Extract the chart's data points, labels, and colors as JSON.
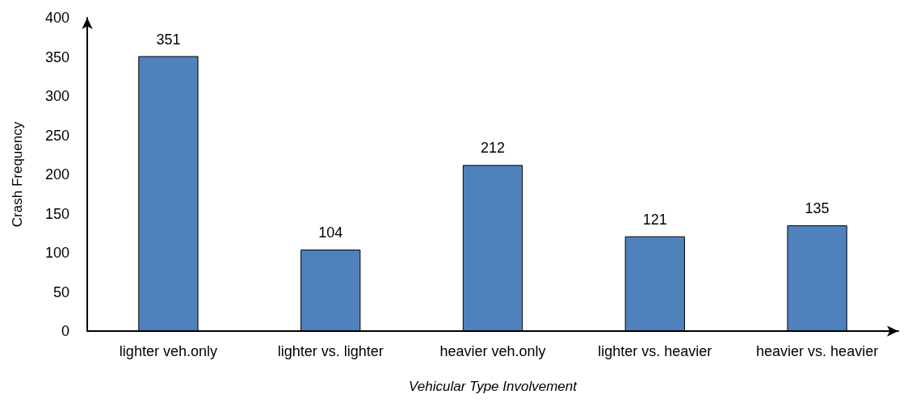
{
  "chart_data": {
    "type": "bar",
    "xlabel": "Vehicular Type Involvement",
    "ylabel": "Crash Frequency",
    "categories": [
      "lighter veh.only",
      "lighter vs. lighter",
      "heavier veh.only",
      "lighter vs. heavier",
      "heavier vs. heavier"
    ],
    "values": [
      351,
      104,
      212,
      121,
      135
    ],
    "color": "#4f81bd",
    "ylim": [
      0,
      400
    ],
    "yticks": [
      0,
      50,
      100,
      150,
      200,
      250,
      300,
      350,
      400
    ],
    "data_labels": true,
    "grid": false
  }
}
